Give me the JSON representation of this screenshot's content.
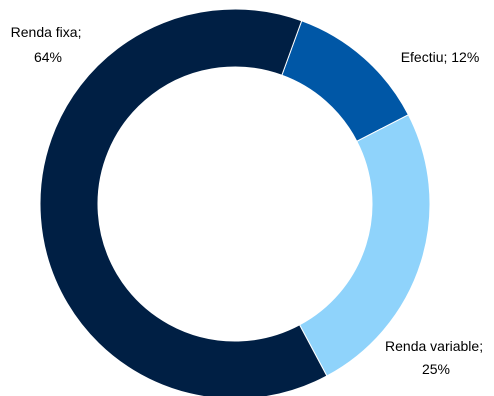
{
  "chart_data": {
    "type": "pie",
    "variant": "donut",
    "slices": [
      {
        "label": "Efectiu",
        "value": 12,
        "color": "#0057A6"
      },
      {
        "label": "Renda variable",
        "value": 25,
        "color": "#8FD3FB"
      },
      {
        "label": "Renda fixa",
        "value": 64,
        "color": "#001F44"
      }
    ],
    "label_texts": [
      {
        "line1": "Renda fixa;",
        "line2": "64%"
      },
      {
        "line1": "Efectiu; 12%",
        "line2": ""
      },
      {
        "line1": "Renda variable;",
        "line2": "25%"
      }
    ],
    "start_angle_deg": 20,
    "legend": "none",
    "grid": false
  }
}
